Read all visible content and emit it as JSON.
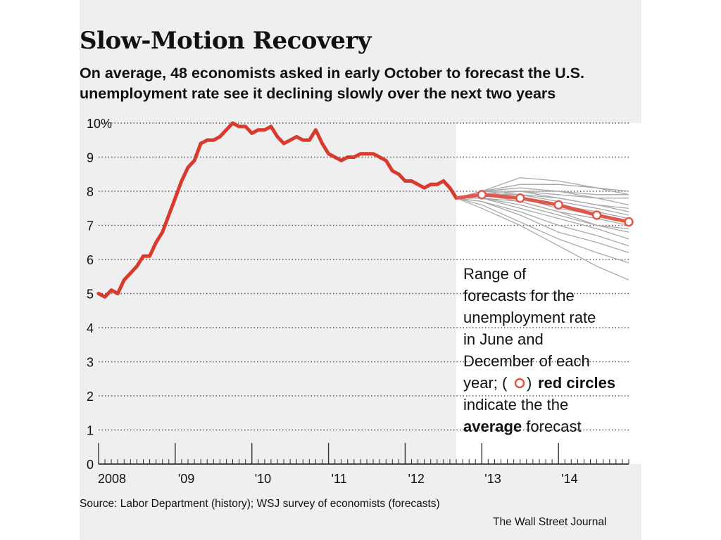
{
  "colors": {
    "history_line": "#d83a2e",
    "forecast_average": "#e0574b",
    "forecast_range": "#a9a9a9",
    "panel_background": "#efefef",
    "forecast_background": "#ffffff"
  },
  "chart_data": {
    "type": "line",
    "title": "Slow-Motion Recovery",
    "subtitle": "On average, 48 economists asked in early October to forecast the U.S. unemployment rate see it declining slowly over the next two years",
    "ylim": [
      0,
      10
    ],
    "y_ticks": [
      "0",
      "1",
      "2",
      "3",
      "4",
      "5",
      "6",
      "7",
      "8",
      "9",
      "10%"
    ],
    "xlim": [
      2008.0,
      2014.917
    ],
    "x_ticks": [
      {
        "label": "2008",
        "value": 2008
      },
      {
        "label": "'09",
        "value": 2009
      },
      {
        "label": "'10",
        "value": 2010
      },
      {
        "label": "'11",
        "value": 2011
      },
      {
        "label": "'12",
        "value": 2012
      },
      {
        "label": "'13",
        "value": 2013
      },
      {
        "label": "'14",
        "value": 2014
      }
    ],
    "grid": true,
    "history": {
      "x": [
        2008.0,
        2008.083,
        2008.167,
        2008.25,
        2008.333,
        2008.417,
        2008.5,
        2008.583,
        2008.667,
        2008.75,
        2008.833,
        2008.917,
        2009.0,
        2009.083,
        2009.167,
        2009.25,
        2009.333,
        2009.417,
        2009.5,
        2009.583,
        2009.667,
        2009.75,
        2009.833,
        2009.917,
        2010.0,
        2010.083,
        2010.167,
        2010.25,
        2010.333,
        2010.417,
        2010.5,
        2010.583,
        2010.667,
        2010.75,
        2010.833,
        2010.917,
        2011.0,
        2011.083,
        2011.167,
        2011.25,
        2011.333,
        2011.417,
        2011.5,
        2011.583,
        2011.667,
        2011.75,
        2011.833,
        2011.917,
        2012.0,
        2012.083,
        2012.167,
        2012.25,
        2012.333,
        2012.417,
        2012.5,
        2012.583,
        2012.667
      ],
      "values": [
        5.0,
        4.9,
        5.1,
        5.0,
        5.4,
        5.6,
        5.8,
        6.1,
        6.1,
        6.5,
        6.8,
        7.3,
        7.8,
        8.3,
        8.7,
        8.9,
        9.4,
        9.5,
        9.5,
        9.6,
        9.8,
        10.0,
        9.9,
        9.9,
        9.7,
        9.8,
        9.8,
        9.9,
        9.6,
        9.4,
        9.5,
        9.6,
        9.5,
        9.5,
        9.8,
        9.4,
        9.1,
        9.0,
        8.9,
        9.0,
        9.0,
        9.1,
        9.1,
        9.1,
        9.0,
        8.9,
        8.6,
        8.5,
        8.3,
        8.3,
        8.2,
        8.1,
        8.2,
        8.2,
        8.3,
        8.1,
        7.8
      ]
    },
    "forecast_average": {
      "x": [
        2012.667,
        2013.0,
        2013.5,
        2014.0,
        2014.5,
        2014.917
      ],
      "values": [
        7.8,
        7.9,
        7.8,
        7.6,
        7.3,
        7.1
      ]
    },
    "forecast_range": {
      "x": [
        2012.667,
        2013.0,
        2013.5,
        2014.0,
        2014.5,
        2014.917
      ],
      "series": [
        [
          7.8,
          8.0,
          8.4,
          8.3,
          8.1,
          8.0
        ],
        [
          7.8,
          8.0,
          8.2,
          8.2,
          8.1,
          7.9
        ],
        [
          7.8,
          8.0,
          8.1,
          8.0,
          7.9,
          7.9
        ],
        [
          7.8,
          7.9,
          8.0,
          8.0,
          7.8,
          7.6
        ],
        [
          7.8,
          7.9,
          8.0,
          7.8,
          7.6,
          7.5
        ],
        [
          7.8,
          8.0,
          7.9,
          7.8,
          7.6,
          7.4
        ],
        [
          7.8,
          7.9,
          7.9,
          7.7,
          7.5,
          7.3
        ],
        [
          7.8,
          7.9,
          7.8,
          7.6,
          7.4,
          7.2
        ],
        [
          7.8,
          7.9,
          7.8,
          7.5,
          7.3,
          7.1
        ],
        [
          7.8,
          7.8,
          7.7,
          7.4,
          7.2,
          7.0
        ],
        [
          7.8,
          7.8,
          7.6,
          7.3,
          7.0,
          6.8
        ],
        [
          7.8,
          7.8,
          7.5,
          7.2,
          6.9,
          6.6
        ],
        [
          7.8,
          7.7,
          7.4,
          7.0,
          6.7,
          6.4
        ],
        [
          7.8,
          7.7,
          7.3,
          6.8,
          6.5,
          6.2
        ],
        [
          7.8,
          7.6,
          7.1,
          6.6,
          6.2,
          5.9
        ],
        [
          7.8,
          7.5,
          7.0,
          6.4,
          5.8,
          5.4
        ],
        [
          7.8,
          7.9,
          7.7,
          7.4,
          7.0,
          6.9
        ],
        [
          7.8,
          8.0,
          8.0,
          7.9,
          7.8,
          7.8
        ]
      ]
    },
    "annotation": {
      "text_lines": [
        "Range of",
        "forecasts for the",
        "unemployment rate",
        "in June and",
        "December of each"
      ],
      "line6_prefix": "year; (",
      "line6_suffix": ") ",
      "line6_bold": "red circles",
      "line7": "indicate the the",
      "line8_bold": "average",
      "line8_suffix": " forecast"
    }
  },
  "source": "Source: Labor Department (history); WSJ survey of economists (forecasts)",
  "publisher": "The Wall Street Journal"
}
